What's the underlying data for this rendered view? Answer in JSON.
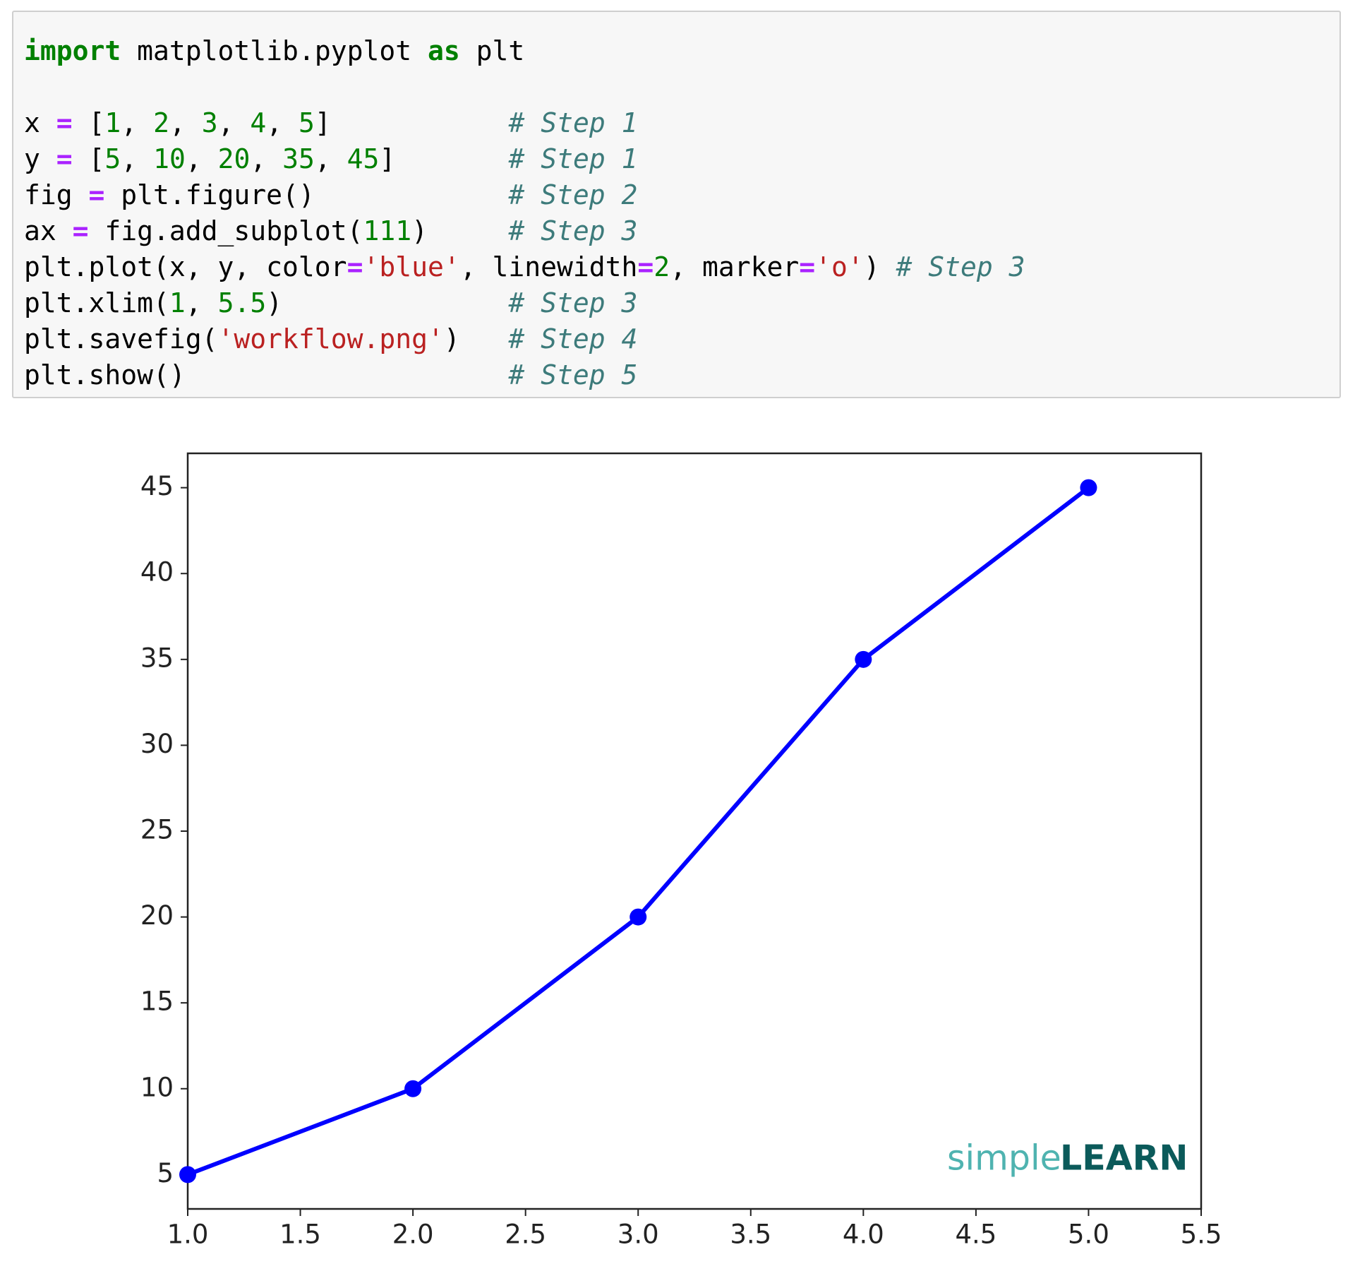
{
  "code": {
    "lines": [
      [
        {
          "t": "import",
          "k": "kw"
        },
        {
          "t": " matplotlib.pyplot ",
          "k": "plain"
        },
        {
          "t": "as",
          "k": "kw"
        },
        {
          "t": " plt",
          "k": "plain"
        }
      ],
      [],
      [
        {
          "t": "x ",
          "k": "plain"
        },
        {
          "t": "=",
          "k": "op"
        },
        {
          "t": " [",
          "k": "plain"
        },
        {
          "t": "1",
          "k": "num"
        },
        {
          "t": ", ",
          "k": "plain"
        },
        {
          "t": "2",
          "k": "num"
        },
        {
          "t": ", ",
          "k": "plain"
        },
        {
          "t": "3",
          "k": "num"
        },
        {
          "t": ", ",
          "k": "plain"
        },
        {
          "t": "4",
          "k": "num"
        },
        {
          "t": ", ",
          "k": "plain"
        },
        {
          "t": "5",
          "k": "num"
        },
        {
          "t": "]           ",
          "k": "plain"
        },
        {
          "t": "# Step 1",
          "k": "com"
        }
      ],
      [
        {
          "t": "y ",
          "k": "plain"
        },
        {
          "t": "=",
          "k": "op"
        },
        {
          "t": " [",
          "k": "plain"
        },
        {
          "t": "5",
          "k": "num"
        },
        {
          "t": ", ",
          "k": "plain"
        },
        {
          "t": "10",
          "k": "num"
        },
        {
          "t": ", ",
          "k": "plain"
        },
        {
          "t": "20",
          "k": "num"
        },
        {
          "t": ", ",
          "k": "plain"
        },
        {
          "t": "35",
          "k": "num"
        },
        {
          "t": ", ",
          "k": "plain"
        },
        {
          "t": "45",
          "k": "num"
        },
        {
          "t": "]       ",
          "k": "plain"
        },
        {
          "t": "# Step 1",
          "k": "com"
        }
      ],
      [
        {
          "t": "fig ",
          "k": "plain"
        },
        {
          "t": "=",
          "k": "op"
        },
        {
          "t": " plt.figure()            ",
          "k": "plain"
        },
        {
          "t": "# Step 2",
          "k": "com"
        }
      ],
      [
        {
          "t": "ax ",
          "k": "plain"
        },
        {
          "t": "=",
          "k": "op"
        },
        {
          "t": " fig.add_subplot(",
          "k": "plain"
        },
        {
          "t": "111",
          "k": "num"
        },
        {
          "t": ")     ",
          "k": "plain"
        },
        {
          "t": "# Step 3",
          "k": "com"
        }
      ],
      [
        {
          "t": "plt.plot(x, y, color",
          "k": "plain"
        },
        {
          "t": "=",
          "k": "op"
        },
        {
          "t": "'blue'",
          "k": "str"
        },
        {
          "t": ", linewidth",
          "k": "plain"
        },
        {
          "t": "=",
          "k": "op"
        },
        {
          "t": "2",
          "k": "num"
        },
        {
          "t": ", marker",
          "k": "plain"
        },
        {
          "t": "=",
          "k": "op"
        },
        {
          "t": "'o'",
          "k": "str"
        },
        {
          "t": ") ",
          "k": "plain"
        },
        {
          "t": "# Step 3",
          "k": "com"
        }
      ],
      [
        {
          "t": "plt.xlim(",
          "k": "plain"
        },
        {
          "t": "1",
          "k": "num"
        },
        {
          "t": ", ",
          "k": "plain"
        },
        {
          "t": "5.5",
          "k": "num"
        },
        {
          "t": ")              ",
          "k": "plain"
        },
        {
          "t": "# Step 3",
          "k": "com"
        }
      ],
      [
        {
          "t": "plt.savefig(",
          "k": "plain"
        },
        {
          "t": "'workflow.png'",
          "k": "str"
        },
        {
          "t": ")   ",
          "k": "plain"
        },
        {
          "t": "# Step 4",
          "k": "com"
        }
      ],
      [
        {
          "t": "plt.show()                    ",
          "k": "plain"
        },
        {
          "t": "# Step 5",
          "k": "com"
        }
      ]
    ]
  },
  "chart_data": {
    "type": "line",
    "x": [
      1,
      2,
      3,
      4,
      5
    ],
    "series": [
      {
        "color": "#0000ff",
        "values": [
          5,
          10,
          20,
          35,
          45
        ]
      }
    ],
    "xlim": [
      1,
      5.5
    ],
    "ylim": [
      3,
      47
    ],
    "xticks": [
      {
        "value": 1,
        "label": "1.0"
      },
      {
        "value": 1.5,
        "label": "1.5"
      },
      {
        "value": 2,
        "label": "2.0"
      },
      {
        "value": 2.5,
        "label": "2.5"
      },
      {
        "value": 3,
        "label": "3.0"
      },
      {
        "value": 3.5,
        "label": "3.5"
      },
      {
        "value": 4,
        "label": "4.0"
      },
      {
        "value": 4.5,
        "label": "4.5"
      },
      {
        "value": 5,
        "label": "5.0"
      },
      {
        "value": 5.5,
        "label": "5.5"
      }
    ],
    "yticks": [
      5,
      10,
      15,
      20,
      25,
      30,
      35,
      40,
      45
    ],
    "marker": true
  },
  "watermark": {
    "simple": "simple",
    "learn": "LEARN"
  }
}
